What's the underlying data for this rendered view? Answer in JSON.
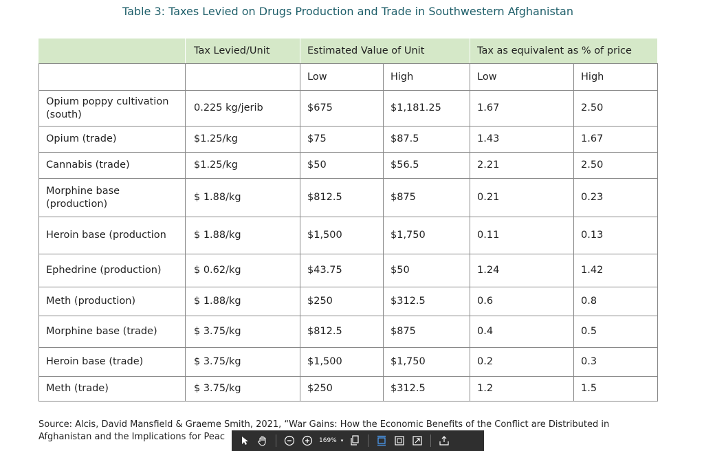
{
  "title": "Table 3: Taxes Levied on Drugs Production and Trade in Southwestern Afghanistan",
  "table": {
    "header_row1": {
      "empty": "",
      "tax_levied": "Tax Levied/Unit",
      "estimated_value": "Estimated Value of Unit",
      "tax_percent": "Tax as equivalent as % of price"
    },
    "header_row2": {
      "low": "Low",
      "high": "High",
      "tax_low": "Low",
      "tax_high": "High"
    },
    "rows": [
      {
        "item": "Opium poppy cultivation (south)",
        "tax": "0.225 kg/jerib",
        "est_low": "$675",
        "est_high": "$1,181.25",
        "pct_low": "1.67",
        "pct_high": "2.50"
      },
      {
        "item": "Opium (trade)",
        "tax": "$1.25/kg",
        "est_low": "$75",
        "est_high": "$87.5",
        "pct_low": "1.43",
        "pct_high": "1.67"
      },
      {
        "item": "Cannabis (trade)",
        "tax": "$1.25/kg",
        "est_low": "$50",
        "est_high": "$56.5",
        "pct_low": "2.21",
        "pct_high": "2.50"
      },
      {
        "item": "Morphine base (production)",
        "tax": "$ 1.88/kg",
        "est_low": "$812.5",
        "est_high": "$875",
        "pct_low": "0.21",
        "pct_high": "0.23"
      },
      {
        "item": "Heroin base (production",
        "tax": "$ 1.88/kg",
        "est_low": "$1,500",
        "est_high": "$1,750",
        "pct_low": "0.11",
        "pct_high": "0.13"
      },
      {
        "item": "Ephedrine (production)",
        "tax": "$ 0.62/kg",
        "est_low": "$43.75",
        "est_high": "$50",
        "pct_low": "1.24",
        "pct_high": "1.42"
      },
      {
        "item": "Meth (production)",
        "tax": "$ 1.88/kg",
        "est_low": "$250",
        "est_high": "$312.5",
        "pct_low": "0.6",
        "pct_high": "0.8"
      },
      {
        "item": "Morphine base (trade)",
        "tax": "$ 3.75/kg",
        "est_low": "$812.5",
        "est_high": "$875",
        "pct_low": "0.4",
        "pct_high": "0.5"
      },
      {
        "item": "Heroin base (trade)",
        "tax": "$ 3.75/kg",
        "est_low": "$1,500",
        "est_high": "$1,750",
        "pct_low": "0.2",
        "pct_high": "0.3"
      },
      {
        "item": "Meth (trade)",
        "tax": "$ 3.75/kg",
        "est_low": "$250",
        "est_high": "$312.5",
        "pct_low": "1.2",
        "pct_high": "1.5"
      }
    ]
  },
  "footer": {
    "line1": "Source: Alcis, David Mansfield & Graeme Smith, 2021, “War Gains: How the Economic Benefits of the Conflict are Distributed in",
    "line2": "Afghanistan and the Implications for Peac"
  },
  "toolbar": {
    "zoom_label": "169%",
    "caret": "▾",
    "icons": [
      "pointer-icon",
      "hand-icon",
      "zoom-out-icon",
      "zoom-in-icon",
      "page-icon",
      "fit-height-icon",
      "fit-page-icon",
      "fullscreen-icon",
      "share-icon"
    ]
  },
  "colors": {
    "title": "#1f5f6a",
    "header_bg": "#d5e8c8",
    "toolbar_bg": "#2f2f2f"
  }
}
